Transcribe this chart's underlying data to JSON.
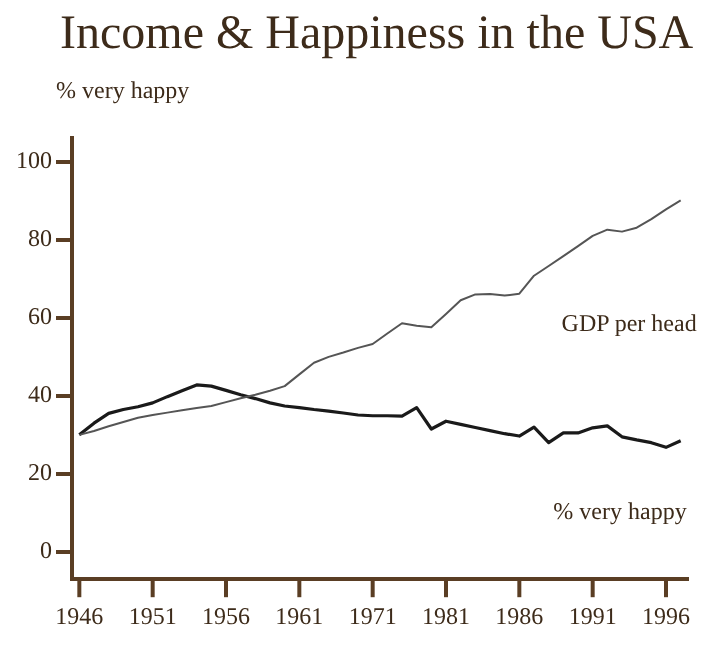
{
  "chart_data": {
    "type": "line",
    "title": "Income & Happiness in the USA",
    "ylabel": "% very happy",
    "categories": [
      "1946",
      null,
      null,
      null,
      null,
      "1951",
      null,
      null,
      null,
      null,
      "1956",
      null,
      null,
      null,
      null,
      "1961",
      null,
      null,
      null,
      null,
      "1971",
      null,
      null,
      null,
      null,
      "1981",
      null,
      null,
      null,
      null,
      "1986",
      null,
      null,
      null,
      null,
      "1991",
      null,
      null,
      null,
      null,
      "1996",
      null
    ],
    "series": [
      {
        "name": "GDP per head",
        "color": "#555555",
        "values": [
          30,
          31,
          32.2,
          33.3,
          34.4,
          35.1,
          35.7,
          36.3,
          36.9,
          37.4,
          38.4,
          39.4,
          40.3,
          41.3,
          42.5,
          45.5,
          48.5,
          50,
          51.1,
          52.3,
          53.3,
          56,
          58.6,
          58,
          57.6,
          61,
          64.5,
          66,
          66.1,
          65.7,
          66.2,
          70.8,
          73.3,
          75.8,
          78.4,
          81,
          82.6,
          82.1,
          83.1,
          85.3,
          87.8,
          90.1
        ]
      },
      {
        "name": "% very happy",
        "color": "#1a1a1a",
        "values": [
          30,
          33,
          35.5,
          36.5,
          37.2,
          38.2,
          39.8,
          41.3,
          42.8,
          42.5,
          41.4,
          40.3,
          39.3,
          38.2,
          37.4,
          37,
          36.5,
          36.1,
          35.6,
          35.1,
          34.9,
          34.9,
          34.8,
          37,
          31.5,
          33.5,
          32.7,
          31.9,
          31.1,
          30.3,
          29.7,
          32,
          28,
          30.5,
          30.5,
          31.8,
          32.3,
          29.5,
          28.7,
          28,
          26.8,
          28.5
        ]
      }
    ],
    "ylim": [
      -7,
      106
    ],
    "yticks": [
      0,
      20,
      40,
      60,
      80,
      100
    ],
    "grid": false,
    "legend": false,
    "marker": "none",
    "line_style": "solid"
  }
}
